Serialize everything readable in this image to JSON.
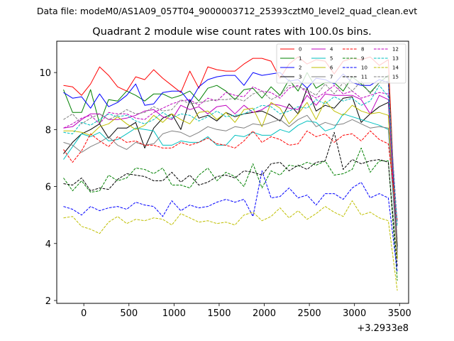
{
  "chart_data": {
    "type": "line",
    "suptitle": "Data file: modeM0/AS1A09_057T04_9000003712_25393cztM0_level2_quad_clean.evt",
    "title": "Quadrant 2 module wise count rates with 100.0s bins.",
    "xlabel": "",
    "ylabel": "",
    "x_offset_label": "+3.2933e8",
    "xlim": [
      -300,
      3600
    ],
    "ylim": [
      1.9,
      11.1
    ],
    "x_ticks": [
      "0",
      "500",
      "1000",
      "1500",
      "2000",
      "2500",
      "3000",
      "3500"
    ],
    "y_ticks": [
      "2",
      "4",
      "6",
      "8",
      "10"
    ],
    "legend_position": "top-right",
    "x": [
      -225,
      -125,
      -25,
      75,
      175,
      275,
      375,
      475,
      575,
      675,
      775,
      875,
      975,
      1075,
      1175,
      1275,
      1375,
      1475,
      1575,
      1675,
      1775,
      1875,
      1975,
      2075,
      2175,
      2275,
      2375,
      2475,
      2575,
      2675,
      2775,
      2875,
      2975,
      3075,
      3175,
      3275,
      3375,
      3475
    ],
    "series": [
      {
        "name": "0",
        "color": "#ff0000",
        "dash": "solid",
        "values": [
          9.55,
          9.5,
          9.2,
          9.6,
          10.2,
          9.9,
          9.5,
          9.35,
          9.85,
          9.75,
          10.1,
          9.8,
          9.55,
          9.3,
          10.05,
          9.45,
          10.2,
          10.1,
          10.05,
          10.05,
          10.3,
          10.5,
          10.5,
          10.4,
          9.8,
          10.3,
          10.55,
          10.3,
          10.45,
          10.4,
          9.95,
          10.4,
          10.5,
          10.45,
          10.55,
          10.25,
          10.45,
          3.5
        ]
      },
      {
        "name": "1",
        "color": "#008000",
        "dash": "solid",
        "values": [
          9.4,
          8.6,
          8.6,
          9.4,
          8.2,
          9.05,
          9.0,
          9.35,
          9.2,
          9.0,
          9.25,
          9.25,
          9.1,
          9.2,
          9.35,
          9.0,
          9.45,
          9.55,
          9.35,
          9.05,
          9.4,
          9.45,
          9.1,
          9.5,
          9.2,
          9.75,
          9.35,
          10.0,
          9.45,
          9.65,
          9.65,
          9.35,
          9.85,
          9.6,
          9.3,
          9.65,
          9.9,
          3.8
        ]
      },
      {
        "name": "2",
        "color": "#0000ff",
        "dash": "solid",
        "values": [
          9.3,
          9.1,
          9.15,
          8.75,
          9.25,
          8.8,
          8.95,
          9.2,
          9.6,
          8.85,
          8.9,
          9.3,
          9.35,
          9.35,
          8.95,
          9.5,
          9.75,
          9.85,
          9.9,
          9.9,
          9.55,
          10.0,
          9.9,
          9.95,
          10.0,
          9.7,
          9.75,
          9.45,
          9.8,
          9.75,
          9.6,
          9.95,
          9.65,
          9.55,
          9.55,
          9.75,
          9.65,
          3.7
        ]
      },
      {
        "name": "3",
        "color": "#000000",
        "dash": "solid",
        "values": [
          7.15,
          7.55,
          7.85,
          8.0,
          8.2,
          7.7,
          8.05,
          8.05,
          8.25,
          7.35,
          8.05,
          8.4,
          8.55,
          8.0,
          9.05,
          8.4,
          8.5,
          8.3,
          8.6,
          8.45,
          8.55,
          8.6,
          8.65,
          8.5,
          8.3,
          8.9,
          8.55,
          9.45,
          8.65,
          8.85,
          8.75,
          9.1,
          9.15,
          8.25,
          8.55,
          8.8,
          8.95,
          3.9
        ]
      },
      {
        "name": "4",
        "color": "#bf00bf",
        "dash": "solid",
        "values": [
          8.05,
          8.1,
          8.35,
          8.55,
          8.55,
          8.35,
          8.35,
          8.4,
          8.5,
          8.65,
          8.7,
          8.45,
          8.35,
          8.85,
          8.7,
          8.8,
          8.55,
          8.8,
          8.85,
          8.55,
          8.85,
          8.6,
          8.7,
          8.9,
          8.85,
          8.75,
          8.7,
          9.2,
          8.85,
          9.25,
          9.2,
          9.2,
          9.2,
          9.05,
          8.55,
          9.2,
          9.05,
          3.6
        ]
      },
      {
        "name": "5",
        "color": "#00bfbf",
        "dash": "solid",
        "values": [
          6.95,
          7.4,
          7.85,
          7.75,
          7.9,
          7.6,
          7.65,
          7.85,
          8.05,
          8.0,
          7.95,
          7.45,
          7.45,
          7.6,
          7.55,
          7.55,
          7.75,
          7.45,
          7.45,
          7.8,
          7.75,
          7.9,
          7.8,
          7.8,
          8.0,
          7.9,
          8.15,
          8.3,
          8.25,
          7.95,
          8.05,
          8.55,
          8.45,
          8.35,
          8.25,
          8.15,
          8.0,
          3.55
        ]
      },
      {
        "name": "6",
        "color": "#bfbf00",
        "dash": "solid",
        "values": [
          7.95,
          7.95,
          7.9,
          7.8,
          8.1,
          8.2,
          8.45,
          8.2,
          8.0,
          8.15,
          8.5,
          8.25,
          8.55,
          8.35,
          8.2,
          8.6,
          8.65,
          8.35,
          8.6,
          8.25,
          8.7,
          8.75,
          8.1,
          8.95,
          8.75,
          8.2,
          8.55,
          8.95,
          8.35,
          9.0,
          8.65,
          8.5,
          8.85,
          8.65,
          8.55,
          8.6,
          8.5,
          3.45
        ]
      },
      {
        "name": "7",
        "color": "#808080",
        "dash": "solid",
        "values": [
          7.55,
          7.45,
          7.2,
          7.4,
          7.55,
          7.75,
          7.45,
          7.3,
          7.55,
          7.45,
          7.5,
          7.85,
          7.95,
          7.9,
          7.75,
          7.9,
          8.1,
          8.0,
          7.95,
          8.1,
          8.05,
          8.2,
          8.15,
          8.25,
          8.35,
          8.1,
          8.35,
          8.5,
          8.1,
          8.25,
          8.15,
          8.2,
          8.35,
          8.2,
          8.05,
          8.1,
          8.05,
          3.7
        ]
      },
      {
        "name": "8",
        "color": "#ff0000",
        "dash": "dashed",
        "values": [
          7.3,
          6.85,
          7.25,
          7.85,
          7.6,
          7.4,
          7.75,
          7.55,
          7.6,
          7.45,
          7.45,
          7.35,
          7.35,
          7.55,
          7.45,
          7.55,
          7.7,
          7.5,
          7.45,
          7.35,
          7.6,
          7.95,
          7.55,
          7.75,
          7.65,
          7.45,
          7.5,
          7.95,
          7.75,
          7.85,
          7.55,
          7.8,
          7.85,
          7.6,
          7.95,
          7.65,
          7.5,
          4.8
        ]
      },
      {
        "name": "9",
        "color": "#008000",
        "dash": "dashed",
        "values": [
          6.3,
          5.85,
          6.2,
          5.8,
          5.85,
          6.4,
          6.2,
          6.3,
          6.65,
          6.6,
          6.45,
          6.65,
          6.05,
          6.05,
          5.95,
          6.4,
          6.65,
          6.2,
          6.5,
          6.35,
          6.0,
          6.8,
          5.95,
          6.55,
          6.4,
          6.75,
          6.7,
          6.85,
          6.75,
          6.9,
          6.4,
          6.45,
          6.6,
          7.35,
          6.5,
          6.9,
          6.9,
          2.7
        ]
      },
      {
        "name": "10",
        "color": "#0000ff",
        "dash": "dashed",
        "values": [
          5.3,
          5.2,
          5.0,
          5.3,
          5.15,
          5.25,
          5.3,
          5.2,
          5.45,
          5.35,
          5.3,
          4.95,
          5.5,
          5.15,
          5.35,
          5.25,
          5.3,
          5.45,
          5.55,
          5.45,
          5.55,
          4.95,
          6.55,
          5.6,
          5.65,
          5.95,
          5.6,
          5.7,
          5.35,
          5.75,
          5.75,
          5.55,
          5.95,
          6.15,
          5.6,
          5.75,
          5.6,
          3.0
        ]
      },
      {
        "name": "11",
        "color": "#000000",
        "dash": "dashed",
        "values": [
          6.1,
          6.05,
          6.3,
          5.85,
          5.95,
          5.9,
          6.25,
          6.45,
          6.4,
          6.35,
          6.2,
          6.2,
          6.5,
          6.15,
          6.4,
          6.05,
          6.15,
          6.35,
          6.4,
          6.3,
          6.55,
          6.5,
          6.4,
          6.8,
          6.85,
          6.55,
          6.75,
          6.6,
          6.85,
          6.9,
          7.9,
          6.6,
          6.95,
          6.8,
          6.9,
          6.95,
          6.85,
          3.2
        ]
      },
      {
        "name": "12",
        "color": "#bf00bf",
        "dash": "dashed",
        "values": [
          8.05,
          8.2,
          8.4,
          8.5,
          8.2,
          8.6,
          8.55,
          8.55,
          8.4,
          8.35,
          8.6,
          8.75,
          8.9,
          9.0,
          9.05,
          8.85,
          9.1,
          9.0,
          9.3,
          9.2,
          9.15,
          9.5,
          9.35,
          9.3,
          9.1,
          9.45,
          9.55,
          9.3,
          9.1,
          9.3,
          9.55,
          9.25,
          9.35,
          9.1,
          9.2,
          9.3,
          9.25,
          4.7
        ]
      },
      {
        "name": "13",
        "color": "#00bfbf",
        "dash": "dashed",
        "values": [
          7.9,
          7.85,
          8.25,
          8.15,
          8.35,
          8.55,
          8.45,
          8.5,
          8.3,
          8.2,
          8.35,
          8.6,
          8.4,
          8.55,
          8.5,
          8.3,
          8.45,
          8.65,
          8.45,
          8.5,
          8.55,
          8.7,
          8.85,
          8.8,
          8.55,
          8.65,
          8.8,
          8.75,
          9.05,
          8.9,
          9.15,
          9.0,
          9.1,
          8.85,
          9.0,
          9.55,
          9.15,
          4.6
        ]
      },
      {
        "name": "14",
        "color": "#bfbf00",
        "dash": "dashed",
        "values": [
          4.9,
          4.95,
          4.6,
          4.5,
          4.35,
          4.75,
          4.95,
          4.7,
          4.85,
          4.8,
          4.9,
          4.85,
          4.65,
          5.05,
          4.9,
          4.75,
          4.8,
          4.7,
          4.75,
          4.65,
          5.0,
          5.1,
          4.8,
          4.95,
          5.25,
          4.9,
          5.15,
          4.85,
          5.05,
          5.3,
          5.1,
          4.95,
          5.5,
          5.0,
          5.1,
          4.9,
          4.8,
          2.35
        ]
      },
      {
        "name": "15",
        "color": "#808080",
        "dash": "dashed",
        "values": [
          8.35,
          8.55,
          8.2,
          8.4,
          8.55,
          8.35,
          8.5,
          8.7,
          8.55,
          8.6,
          8.8,
          8.65,
          8.7,
          9.05,
          8.9,
          8.95,
          9.0,
          9.05,
          9.05,
          9.1,
          9.0,
          9.25,
          9.35,
          9.05,
          9.2,
          9.55,
          9.5,
          9.4,
          9.2,
          9.6,
          9.25,
          9.65,
          9.35,
          9.7,
          9.25,
          9.65,
          9.7,
          4.1
        ]
      }
    ]
  }
}
